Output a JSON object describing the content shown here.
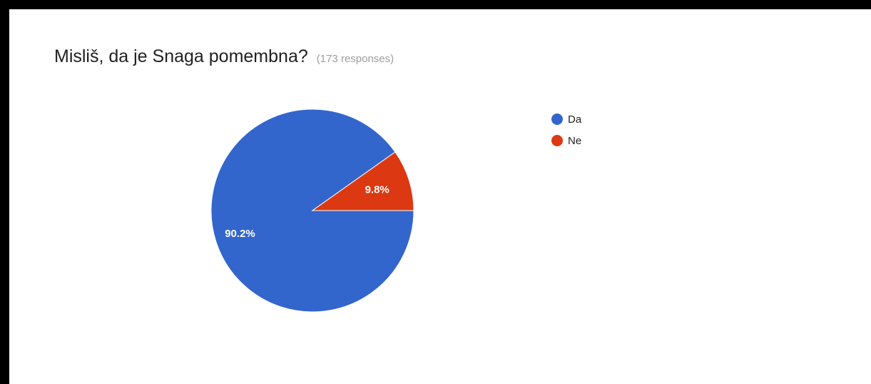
{
  "question": {
    "title": "Misliš, da je Snaga pomembna?",
    "response_count": "173 responses"
  },
  "chart_data": {
    "type": "pie",
    "title": "Misliš, da je Snaga pomembna?",
    "categories": [
      "Da",
      "Ne"
    ],
    "values": [
      90.2,
      9.8
    ],
    "labels": [
      "90.2%",
      "9.8%"
    ],
    "colors": [
      "#3366cc",
      "#dc3912"
    ],
    "legend_position": "right"
  }
}
